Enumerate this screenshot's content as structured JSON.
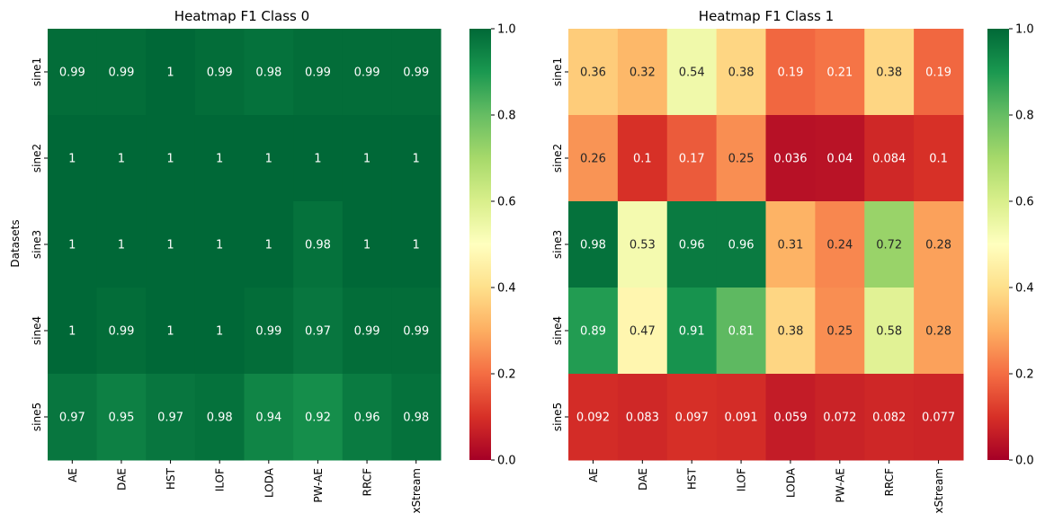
{
  "chart_data": [
    {
      "type": "heatmap",
      "title": "Heatmap F1 Class 0",
      "ylabel": "Datasets",
      "xlabel": "",
      "x_categories": [
        "AE",
        "DAE",
        "HST",
        "ILOF",
        "LODA",
        "PW-AE",
        "RRCF",
        "xStream"
      ],
      "y_categories": [
        "sine1",
        "sine2",
        "sine3",
        "sine4",
        "sine5"
      ],
      "values": [
        [
          0.99,
          0.99,
          1,
          0.99,
          0.98,
          0.99,
          0.99,
          0.99
        ],
        [
          1,
          1,
          1,
          1,
          1,
          1,
          1,
          1
        ],
        [
          1,
          1,
          1,
          1,
          1,
          0.98,
          1,
          1
        ],
        [
          1,
          0.99,
          1,
          1,
          0.99,
          0.97,
          0.99,
          0.99
        ],
        [
          0.97,
          0.95,
          0.97,
          0.98,
          0.94,
          0.92,
          0.96,
          0.98
        ]
      ],
      "value_labels": [
        [
          "0.99",
          "0.99",
          "1",
          "0.99",
          "0.98",
          "0.99",
          "0.99",
          "0.99"
        ],
        [
          "1",
          "1",
          "1",
          "1",
          "1",
          "1",
          "1",
          "1"
        ],
        [
          "1",
          "1",
          "1",
          "1",
          "1",
          "0.98",
          "1",
          "1"
        ],
        [
          "1",
          "0.99",
          "1",
          "1",
          "0.99",
          "0.97",
          "0.99",
          "0.99"
        ],
        [
          "0.97",
          "0.95",
          "0.97",
          "0.98",
          "0.94",
          "0.92",
          "0.96",
          "0.98"
        ]
      ],
      "colormap": "RdYlGn",
      "colorbar_range": [
        0,
        1
      ],
      "colorbar_ticks": [
        "0.0",
        "0.2",
        "0.4",
        "0.6",
        "0.8",
        "1.0"
      ]
    },
    {
      "type": "heatmap",
      "title": "Heatmap F1 Class 1",
      "ylabel": "",
      "xlabel": "",
      "x_categories": [
        "AE",
        "DAE",
        "HST",
        "ILOF",
        "LODA",
        "PW-AE",
        "RRCF",
        "xStream"
      ],
      "y_categories": [
        "sine1",
        "sine2",
        "sine3",
        "sine4",
        "sine5"
      ],
      "values": [
        [
          0.36,
          0.32,
          0.54,
          0.38,
          0.19,
          0.21,
          0.38,
          0.19
        ],
        [
          0.26,
          0.1,
          0.17,
          0.25,
          0.036,
          0.04,
          0.084,
          0.1
        ],
        [
          0.98,
          0.53,
          0.96,
          0.96,
          0.31,
          0.24,
          0.72,
          0.28
        ],
        [
          0.89,
          0.47,
          0.91,
          0.81,
          0.38,
          0.25,
          0.58,
          0.28
        ],
        [
          0.092,
          0.083,
          0.097,
          0.091,
          0.059,
          0.072,
          0.082,
          0.077
        ]
      ],
      "value_labels": [
        [
          "0.36",
          "0.32",
          "0.54",
          "0.38",
          "0.19",
          "0.21",
          "0.38",
          "0.19"
        ],
        [
          "0.26",
          "0.1",
          "0.17",
          "0.25",
          "0.036",
          "0.04",
          "0.084",
          "0.1"
        ],
        [
          "0.98",
          "0.53",
          "0.96",
          "0.96",
          "0.31",
          "0.24",
          "0.72",
          "0.28"
        ],
        [
          "0.89",
          "0.47",
          "0.91",
          "0.81",
          "0.38",
          "0.25",
          "0.58",
          "0.28"
        ],
        [
          "0.092",
          "0.083",
          "0.097",
          "0.091",
          "0.059",
          "0.072",
          "0.082",
          "0.077"
        ]
      ],
      "colormap": "RdYlGn",
      "colorbar_range": [
        0,
        1
      ],
      "colorbar_ticks": [
        "0.0",
        "0.2",
        "0.4",
        "0.6",
        "0.8",
        "1.0"
      ]
    }
  ]
}
